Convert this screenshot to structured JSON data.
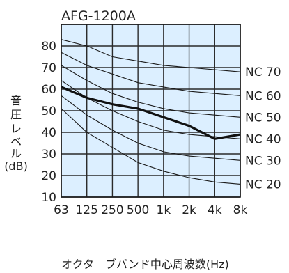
{
  "chart_data": {
    "type": "line",
    "title": "AFG-1200A",
    "xlabel": "オクタ　ブバンド中心周波数(Hz)",
    "ylabel": [
      "音",
      "圧",
      "レ",
      "ベ",
      "ル",
      "(dB)"
    ],
    "categories": [
      "63",
      "125",
      "250",
      "500",
      "1k",
      "2k",
      "4k",
      "8k"
    ],
    "ylim": [
      10,
      90
    ],
    "yticks": [
      10,
      20,
      30,
      40,
      50,
      60,
      70,
      80
    ],
    "grid": true,
    "plot_background": "#dcefff",
    "grid_color": "#2a2a2a",
    "nc_curves": [
      {
        "name": "NC 20",
        "values": [
          51,
          40,
          33,
          26,
          22,
          19,
          17,
          16
        ]
      },
      {
        "name": "NC 30",
        "values": [
          57,
          48,
          41,
          35,
          31,
          29,
          28,
          27
        ]
      },
      {
        "name": "NC 40",
        "values": [
          64,
          56,
          50,
          45,
          41,
          39,
          38,
          37
        ]
      },
      {
        "name": "NC 50",
        "values": [
          71,
          64,
          58,
          54,
          51,
          49,
          48,
          47
        ]
      },
      {
        "name": "NC 60",
        "values": [
          77,
          71,
          67,
          63,
          61,
          59,
          58,
          57
        ]
      },
      {
        "name": "NC 70",
        "values": [
          83,
          80,
          75,
          73,
          71,
          70,
          69,
          68
        ]
      }
    ],
    "series": [
      {
        "values": [
          61,
          56,
          53,
          51,
          47,
          43,
          37,
          39
        ]
      }
    ]
  }
}
